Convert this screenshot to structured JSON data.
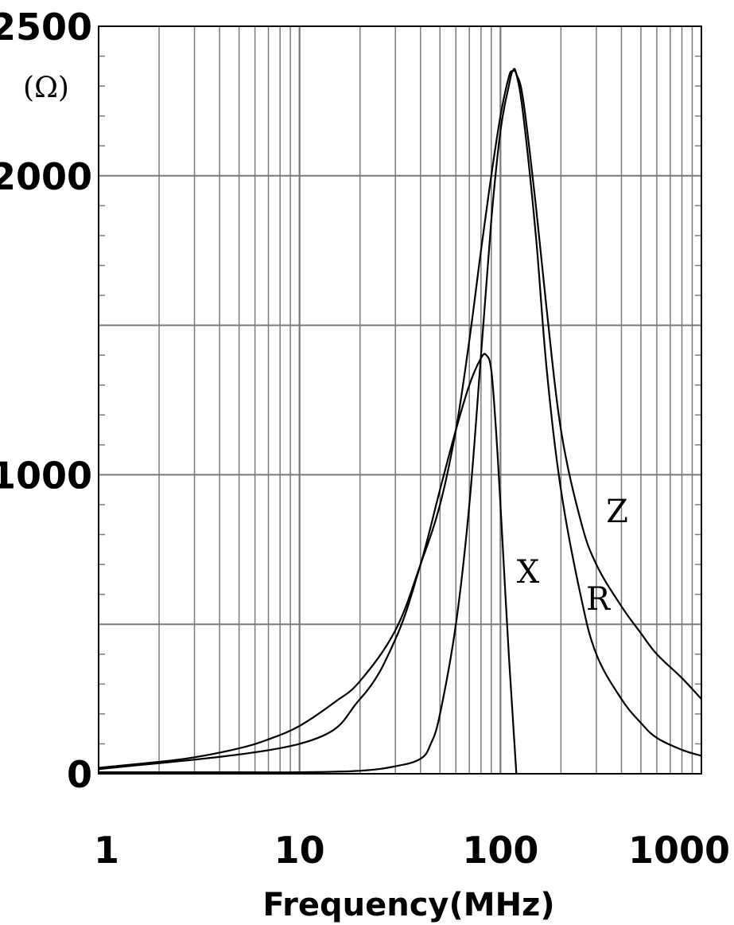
{
  "chart_data": {
    "type": "line",
    "title": "",
    "xlabel": "Frequency(MHz)",
    "ylabel": "(Ω)",
    "xscale": "log",
    "xlim": [
      1,
      1000
    ],
    "ylim": [
      0,
      2500
    ],
    "x_ticks": [
      "1",
      "10",
      "100",
      "1000"
    ],
    "y_ticks": [
      "0",
      "1000",
      "2000",
      "2500"
    ],
    "grid": true,
    "legend": "none",
    "series": [
      {
        "name": "Z",
        "x": [
          1,
          2,
          3,
          5,
          7,
          10,
          15,
          20,
          30,
          40,
          50,
          60,
          70,
          80,
          90,
          100,
          110,
          115,
          120,
          130,
          150,
          170,
          200,
          250,
          300,
          400,
          500,
          600,
          800,
          1000
        ],
        "y": [
          20,
          40,
          55,
          85,
          115,
          160,
          240,
          310,
          480,
          700,
          900,
          1150,
          1450,
          1750,
          2000,
          2200,
          2330,
          2350,
          2340,
          2250,
          1900,
          1550,
          1150,
          850,
          700,
          560,
          470,
          400,
          320,
          250
        ]
      },
      {
        "name": "R",
        "x": [
          1,
          5,
          10,
          20,
          30,
          40,
          45,
          50,
          60,
          70,
          80,
          90,
          100,
          110,
          115,
          120,
          130,
          150,
          170,
          200,
          250,
          300,
          400,
          500,
          600,
          800,
          1000
        ],
        "y": [
          5,
          5,
          5,
          10,
          25,
          50,
          100,
          200,
          500,
          900,
          1400,
          1850,
          2150,
          2300,
          2350,
          2340,
          2200,
          1800,
          1350,
          950,
          600,
          400,
          250,
          170,
          120,
          80,
          60
        ]
      },
      {
        "name": "X",
        "x": [
          1,
          10,
          20,
          30,
          40,
          50,
          60,
          70,
          80,
          85,
          90,
          95,
          100,
          110,
          120
        ],
        "y": [
          15,
          100,
          250,
          450,
          700,
          950,
          1150,
          1300,
          1390,
          1400,
          1350,
          1150,
          900,
          400,
          0
        ]
      }
    ],
    "annotations": [
      "Z",
      "R",
      "X"
    ]
  }
}
